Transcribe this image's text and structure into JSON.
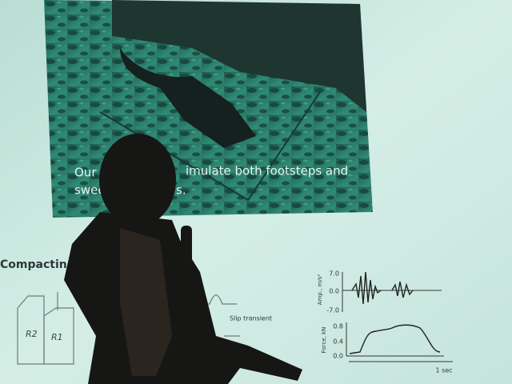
{
  "slide": {
    "caption": {
      "line1_left": "Our",
      "line1_right": "imulate both footsteps and",
      "line2_left": "swee",
      "line2_right": "s."
    },
    "diagram": {
      "title": "Compacting:",
      "box_left": "R2",
      "box_right": "R1",
      "annotation": "Slip transient"
    },
    "amplitude_plot": {
      "axis_label": "Amp., m/s²",
      "ticks": [
        "7.0",
        "0.0",
        "-7.0"
      ]
    },
    "force_plot": {
      "axis_label": "Force, kN",
      "ticks": [
        "0.8",
        "0.4",
        "0.0"
      ],
      "time_label": "1 sec"
    }
  }
}
